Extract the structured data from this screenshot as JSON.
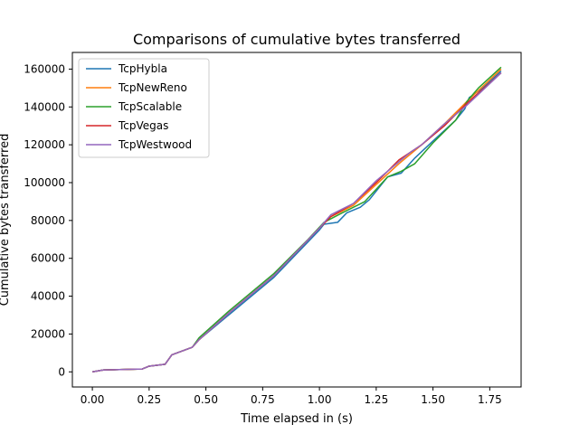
{
  "chart_data": {
    "type": "line",
    "title": "Comparisons of cumulative bytes transferred",
    "xlabel": "Time elapsed in (s)",
    "ylabel": "Cumulative bytes transferred",
    "xlim": [
      -0.088,
      1.888
    ],
    "ylim": [
      -8000,
      168800
    ],
    "xticks": [
      0.0,
      0.25,
      0.5,
      0.75,
      1.0,
      1.25,
      1.5,
      1.75
    ],
    "xtick_labels": [
      "0.00",
      "0.25",
      "0.50",
      "0.75",
      "1.00",
      "1.25",
      "1.50",
      "1.75"
    ],
    "yticks": [
      0,
      20000,
      40000,
      60000,
      80000,
      100000,
      120000,
      140000,
      160000
    ],
    "ytick_labels": [
      "0",
      "20000",
      "40000",
      "60000",
      "80000",
      "100000",
      "120000",
      "140000",
      "160000"
    ],
    "grid": false,
    "legend_position": "top-left",
    "series": [
      {
        "name": "TcpHybla",
        "color": "#1f77b4",
        "points": [
          [
            0.0,
            0
          ],
          [
            0.05,
            1000
          ],
          [
            0.22,
            1500
          ],
          [
            0.25,
            3000
          ],
          [
            0.32,
            4000
          ],
          [
            0.35,
            9000
          ],
          [
            0.44,
            13000
          ],
          [
            0.47,
            17000
          ],
          [
            0.6,
            30000
          ],
          [
            0.8,
            50000
          ],
          [
            1.0,
            75000
          ],
          [
            1.02,
            78000
          ],
          [
            1.08,
            79000
          ],
          [
            1.12,
            84000
          ],
          [
            1.18,
            87000
          ],
          [
            1.22,
            91000
          ],
          [
            1.3,
            103000
          ],
          [
            1.36,
            105000
          ],
          [
            1.42,
            113000
          ],
          [
            1.5,
            122000
          ],
          [
            1.6,
            133000
          ],
          [
            1.64,
            139000
          ],
          [
            1.66,
            145000
          ],
          [
            1.72,
            150000
          ],
          [
            1.8,
            159000
          ]
        ]
      },
      {
        "name": "TcpNewReno",
        "color": "#ff7f0e",
        "points": [
          [
            0.0,
            0
          ],
          [
            0.05,
            1000
          ],
          [
            0.22,
            1500
          ],
          [
            0.25,
            3000
          ],
          [
            0.32,
            4000
          ],
          [
            0.35,
            9000
          ],
          [
            0.44,
            13000
          ],
          [
            0.47,
            17000
          ],
          [
            0.6,
            31000
          ],
          [
            0.8,
            51000
          ],
          [
            1.0,
            76000
          ],
          [
            1.05,
            82000
          ],
          [
            1.15,
            88000
          ],
          [
            1.25,
            99000
          ],
          [
            1.35,
            110000
          ],
          [
            1.45,
            120000
          ],
          [
            1.55,
            131000
          ],
          [
            1.65,
            143000
          ],
          [
            1.8,
            160000
          ]
        ]
      },
      {
        "name": "TcpScalable",
        "color": "#2ca02c",
        "points": [
          [
            0.0,
            0
          ],
          [
            0.05,
            1000
          ],
          [
            0.22,
            1500
          ],
          [
            0.25,
            3000
          ],
          [
            0.32,
            4000
          ],
          [
            0.35,
            9000
          ],
          [
            0.44,
            13000
          ],
          [
            0.47,
            18000
          ],
          [
            0.6,
            32000
          ],
          [
            0.8,
            52000
          ],
          [
            0.95,
            70000
          ],
          [
            1.02,
            79000
          ],
          [
            1.1,
            84000
          ],
          [
            1.2,
            90000
          ],
          [
            1.3,
            103000
          ],
          [
            1.36,
            106000
          ],
          [
            1.42,
            110000
          ],
          [
            1.5,
            121000
          ],
          [
            1.6,
            133000
          ],
          [
            1.65,
            143000
          ],
          [
            1.7,
            150000
          ],
          [
            1.8,
            161000
          ]
        ]
      },
      {
        "name": "TcpVegas",
        "color": "#d62728",
        "points": [
          [
            0.0,
            0
          ],
          [
            0.05,
            1000
          ],
          [
            0.22,
            1500
          ],
          [
            0.25,
            3000
          ],
          [
            0.32,
            4000
          ],
          [
            0.35,
            9000
          ],
          [
            0.44,
            13000
          ],
          [
            0.47,
            17000
          ],
          [
            0.6,
            31000
          ],
          [
            0.8,
            51000
          ],
          [
            1.0,
            76000
          ],
          [
            1.05,
            82000
          ],
          [
            1.15,
            89000
          ],
          [
            1.25,
            100000
          ],
          [
            1.35,
            112000
          ],
          [
            1.45,
            120000
          ],
          [
            1.55,
            130000
          ],
          [
            1.65,
            142000
          ],
          [
            1.8,
            158000
          ]
        ]
      },
      {
        "name": "TcpWestwood",
        "color": "#9467bd",
        "points": [
          [
            0.0,
            0
          ],
          [
            0.05,
            1000
          ],
          [
            0.22,
            1500
          ],
          [
            0.25,
            3000
          ],
          [
            0.32,
            4000
          ],
          [
            0.35,
            9000
          ],
          [
            0.44,
            13000
          ],
          [
            0.47,
            17000
          ],
          [
            0.6,
            31000
          ],
          [
            0.8,
            51000
          ],
          [
            1.0,
            76000
          ],
          [
            1.05,
            83000
          ],
          [
            1.15,
            89000
          ],
          [
            1.25,
            101000
          ],
          [
            1.35,
            111000
          ],
          [
            1.4,
            116000
          ],
          [
            1.45,
            120000
          ],
          [
            1.55,
            131000
          ],
          [
            1.65,
            141000
          ],
          [
            1.8,
            158000
          ]
        ]
      }
    ]
  }
}
